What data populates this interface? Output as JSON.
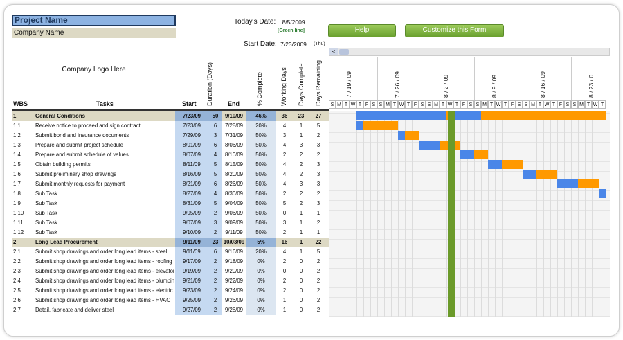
{
  "project_name": "Project Name",
  "company_name": "Company Name",
  "logo_text": "Company Logo Here",
  "today_label": "Today's Date:",
  "today_value": "8/5/2009",
  "green_line": "[Green line]",
  "start_label": "Start Date:",
  "start_value": "7/23/2009",
  "start_dow": "(Thu)",
  "help_label": "Help",
  "customize_label": "Customize this Form",
  "scroll_left": "<",
  "headers": {
    "wbs": "WBS",
    "tasks": "Tasks",
    "start": "Start",
    "duration": "Duration (Days)",
    "end": "End",
    "pct": "% Complete",
    "working": "Working Days",
    "complete": "Days Complete",
    "remaining": "Days Remaining"
  },
  "weeks": [
    "7 / 19 / 09",
    "7 / 26 / 09",
    "8 / 2 / 09",
    "8 / 9 / 09",
    "8 / 16 / 09",
    "8 / 23 / 0"
  ],
  "day_letters": [
    "S",
    "M",
    "T",
    "W",
    "T",
    "F",
    "S"
  ],
  "rows": [
    {
      "wbs": "1",
      "task": "General Conditions",
      "start": "7/23/09",
      "dur": "50",
      "end": "9/10/09",
      "pct": "46%",
      "wd": "36",
      "dc": "23",
      "dr": "27",
      "summary": true
    },
    {
      "wbs": "1.1",
      "task": "Receive notice to proceed and sign contract",
      "start": "7/23/09",
      "dur": "6",
      "end": "7/28/09",
      "pct": "20%",
      "wd": "4",
      "dc": "1",
      "dr": "5"
    },
    {
      "wbs": "1.2",
      "task": "Submit bond and insurance documents",
      "start": "7/29/09",
      "dur": "3",
      "end": "7/31/09",
      "pct": "50%",
      "wd": "3",
      "dc": "1",
      "dr": "2"
    },
    {
      "wbs": "1.3",
      "task": "Prepare and submit project schedule",
      "start": "8/01/09",
      "dur": "6",
      "end": "8/06/09",
      "pct": "50%",
      "wd": "4",
      "dc": "3",
      "dr": "3"
    },
    {
      "wbs": "1.4",
      "task": "Prepare and submit schedule of values",
      "start": "8/07/09",
      "dur": "4",
      "end": "8/10/09",
      "pct": "50%",
      "wd": "2",
      "dc": "2",
      "dr": "2"
    },
    {
      "wbs": "1.5",
      "task": "Obtain building permits",
      "start": "8/11/09",
      "dur": "5",
      "end": "8/15/09",
      "pct": "50%",
      "wd": "4",
      "dc": "2",
      "dr": "3"
    },
    {
      "wbs": "1.6",
      "task": "Submit preliminary shop drawings",
      "start": "8/16/09",
      "dur": "5",
      "end": "8/20/09",
      "pct": "50%",
      "wd": "4",
      "dc": "2",
      "dr": "3"
    },
    {
      "wbs": "1.7",
      "task": "Submit monthly requests for payment",
      "start": "8/21/09",
      "dur": "6",
      "end": "8/26/09",
      "pct": "50%",
      "wd": "4",
      "dc": "3",
      "dr": "3"
    },
    {
      "wbs": "1.8",
      "task": "Sub Task",
      "start": "8/27/09",
      "dur": "4",
      "end": "8/30/09",
      "pct": "50%",
      "wd": "2",
      "dc": "2",
      "dr": "2"
    },
    {
      "wbs": "1.9",
      "task": "Sub Task",
      "start": "8/31/09",
      "dur": "5",
      "end": "9/04/09",
      "pct": "50%",
      "wd": "5",
      "dc": "2",
      "dr": "3"
    },
    {
      "wbs": "1.10",
      "task": "Sub Task",
      "start": "9/05/09",
      "dur": "2",
      "end": "9/06/09",
      "pct": "50%",
      "wd": "0",
      "dc": "1",
      "dr": "1"
    },
    {
      "wbs": "1.11",
      "task": "Sub Task",
      "start": "9/07/09",
      "dur": "3",
      "end": "9/09/09",
      "pct": "50%",
      "wd": "3",
      "dc": "1",
      "dr": "2"
    },
    {
      "wbs": "1.12",
      "task": "Sub Task",
      "start": "9/10/09",
      "dur": "2",
      "end": "9/11/09",
      "pct": "50%",
      "wd": "2",
      "dc": "1",
      "dr": "1"
    },
    {
      "wbs": "2",
      "task": "Long Lead Procurement",
      "start": "9/11/09",
      "dur": "23",
      "end": "10/03/09",
      "pct": "5%",
      "wd": "16",
      "dc": "1",
      "dr": "22",
      "summary": true
    },
    {
      "wbs": "2.1",
      "task": "Submit shop drawings and order long lead items - steel",
      "start": "9/11/09",
      "dur": "6",
      "end": "9/16/09",
      "pct": "20%",
      "wd": "4",
      "dc": "1",
      "dr": "5"
    },
    {
      "wbs": "2.2",
      "task": "Submit shop drawings and order long lead items - roofing",
      "start": "9/17/09",
      "dur": "2",
      "end": "9/18/09",
      "pct": "0%",
      "wd": "2",
      "dc": "0",
      "dr": "2"
    },
    {
      "wbs": "2.3",
      "task": "Submit shop drawings and order long lead items - elevator",
      "start": "9/19/09",
      "dur": "2",
      "end": "9/20/09",
      "pct": "0%",
      "wd": "0",
      "dc": "0",
      "dr": "2"
    },
    {
      "wbs": "2.4",
      "task": "Submit shop drawings and order long lead items - plumbing",
      "start": "9/21/09",
      "dur": "2",
      "end": "9/22/09",
      "pct": "0%",
      "wd": "2",
      "dc": "0",
      "dr": "2"
    },
    {
      "wbs": "2.5",
      "task": "Submit shop drawings and order long lead items - electric",
      "start": "9/23/09",
      "dur": "2",
      "end": "9/24/09",
      "pct": "0%",
      "wd": "2",
      "dc": "0",
      "dr": "2"
    },
    {
      "wbs": "2.6",
      "task": "Submit shop drawings and order long lead items - HVAC",
      "start": "9/25/09",
      "dur": "2",
      "end": "9/26/09",
      "pct": "0%",
      "wd": "1",
      "dc": "0",
      "dr": "2"
    },
    {
      "wbs": "2.7",
      "task": "Detail, fabricate and deliver steel",
      "start": "9/27/09",
      "dur": "2",
      "end": "9/28/09",
      "pct": "0%",
      "wd": "1",
      "dc": "0",
      "dr": "2"
    }
  ],
  "colors": {
    "done": "#4a86e8",
    "remaining": "#ff9900",
    "today": "#6b9a2a"
  }
}
